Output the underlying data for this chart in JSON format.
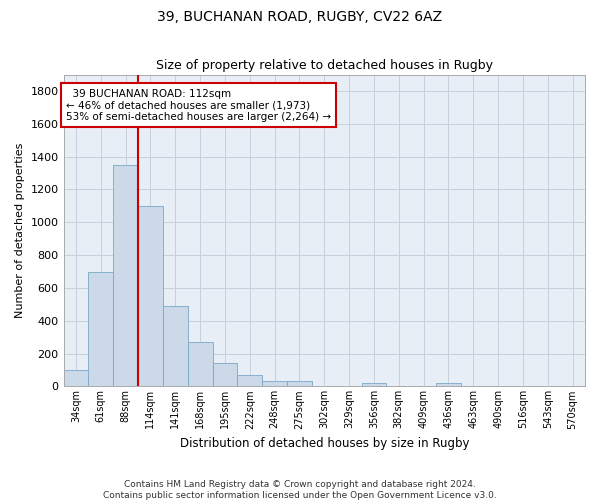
{
  "title": "39, BUCHANAN ROAD, RUGBY, CV22 6AZ",
  "subtitle": "Size of property relative to detached houses in Rugby",
  "xlabel": "Distribution of detached houses by size in Rugby",
  "ylabel": "Number of detached properties",
  "footer1": "Contains HM Land Registry data © Crown copyright and database right 2024.",
  "footer2": "Contains public sector information licensed under the Open Government Licence v3.0.",
  "annotation_line1": "  39 BUCHANAN ROAD: 112sqm",
  "annotation_line2": "← 46% of detached houses are smaller (1,973)",
  "annotation_line3": "53% of semi-detached houses are larger (2,264) →",
  "bar_color": "#ccd9e8",
  "bar_edge_color": "#7aa8c8",
  "grid_color": "#c8d0dc",
  "bg_color": "#e8eef5",
  "red_line_color": "#cc0000",
  "annotation_box_color": "#cc0000",
  "categories": [
    "34sqm",
    "61sqm",
    "88sqm",
    "114sqm",
    "141sqm",
    "168sqm",
    "195sqm",
    "222sqm",
    "248sqm",
    "275sqm",
    "302sqm",
    "329sqm",
    "356sqm",
    "382sqm",
    "409sqm",
    "436sqm",
    "463sqm",
    "490sqm",
    "516sqm",
    "543sqm",
    "570sqm"
  ],
  "values": [
    100,
    700,
    1350,
    1100,
    490,
    270,
    140,
    70,
    35,
    35,
    0,
    0,
    20,
    0,
    0,
    20,
    0,
    0,
    0,
    0,
    0
  ],
  "red_line_x": 2.5,
  "ylim": [
    0,
    1900
  ],
  "yticks": [
    0,
    200,
    400,
    600,
    800,
    1000,
    1200,
    1400,
    1600,
    1800
  ]
}
